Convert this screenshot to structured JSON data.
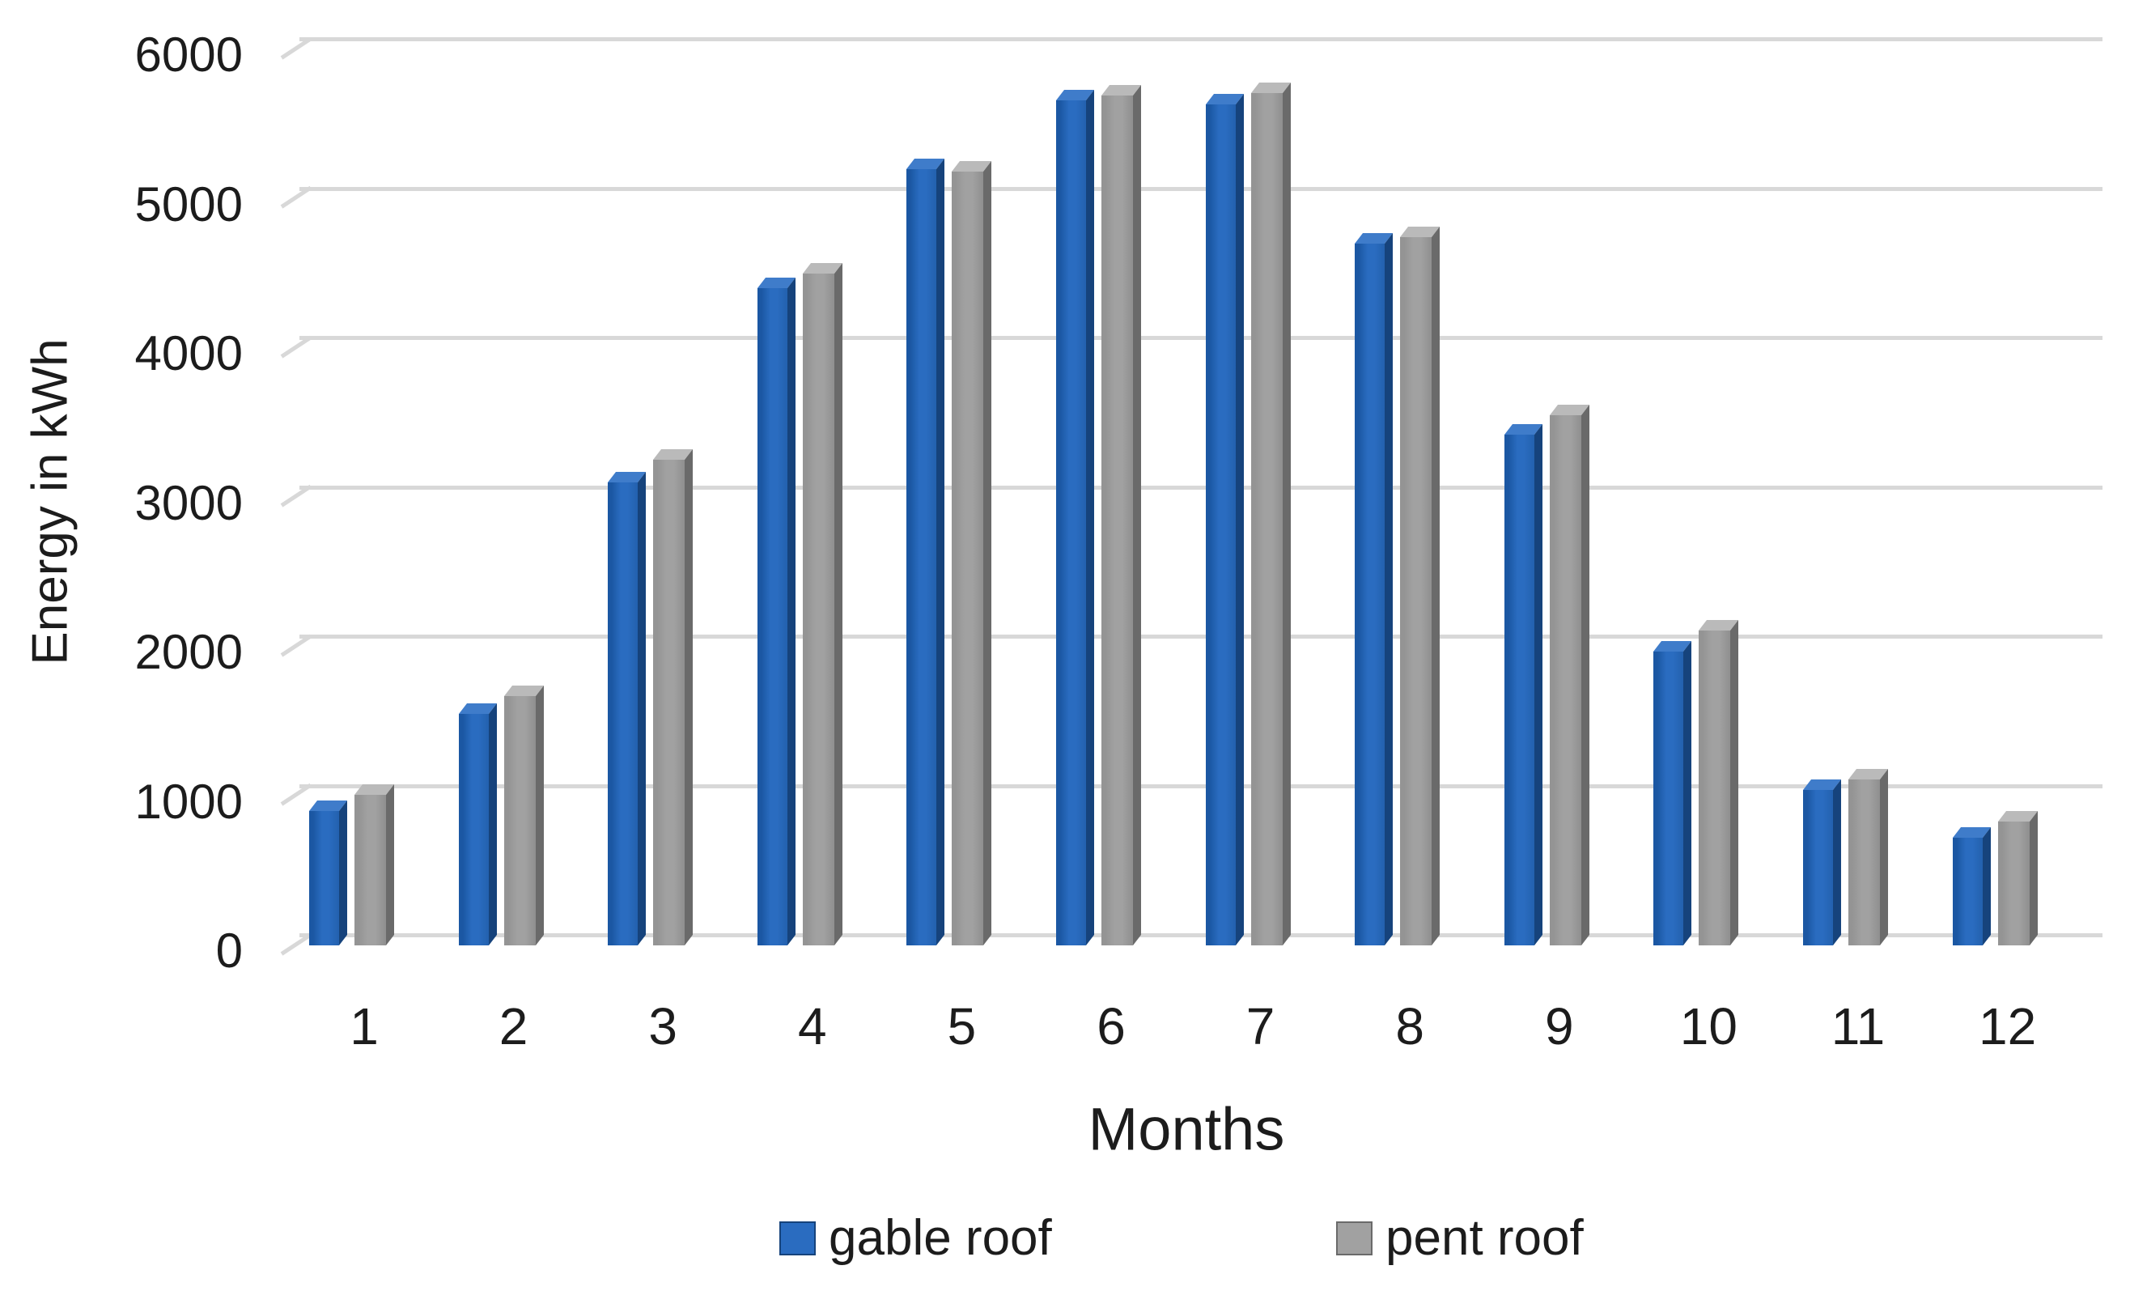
{
  "chart_data": {
    "type": "bar",
    "style": "3d-clustered-column",
    "title": "",
    "xlabel": "Months",
    "ylabel": "Energy in kWh",
    "categories": [
      "1",
      "2",
      "3",
      "4",
      "5",
      "6",
      "7",
      "8",
      "9",
      "10",
      "11",
      "12"
    ],
    "series": [
      {
        "name": "gable roof",
        "color": "#2a6cc0",
        "values": [
          900,
          1550,
          3100,
          4400,
          5200,
          5660,
          5630,
          4700,
          3420,
          1970,
          1040,
          720
        ]
      },
      {
        "name": "pent roof",
        "color": "#a1a1a1",
        "values": [
          1010,
          1670,
          3250,
          4500,
          5180,
          5690,
          5710,
          4740,
          3550,
          2110,
          1110,
          830
        ]
      }
    ],
    "ylim": [
      0,
      6000
    ],
    "yticks": [
      0,
      1000,
      2000,
      3000,
      4000,
      5000,
      6000
    ],
    "grid": true,
    "legend_position": "bottom"
  },
  "colors": {
    "background": "#ffffff",
    "gridline": "#d8d8d8",
    "text": "#1c1c1c",
    "series_styles": [
      {
        "face": "#2a6cc0",
        "edge": "#1b57a3",
        "shade": "#2361ae",
        "side": "#16437c",
        "cap": "#3f7cca"
      },
      {
        "face": "#a1a1a1",
        "edge": "#949494",
        "shade": "#8f8f8f",
        "side": "#6a6a6a",
        "cap": "#bababa"
      }
    ]
  }
}
